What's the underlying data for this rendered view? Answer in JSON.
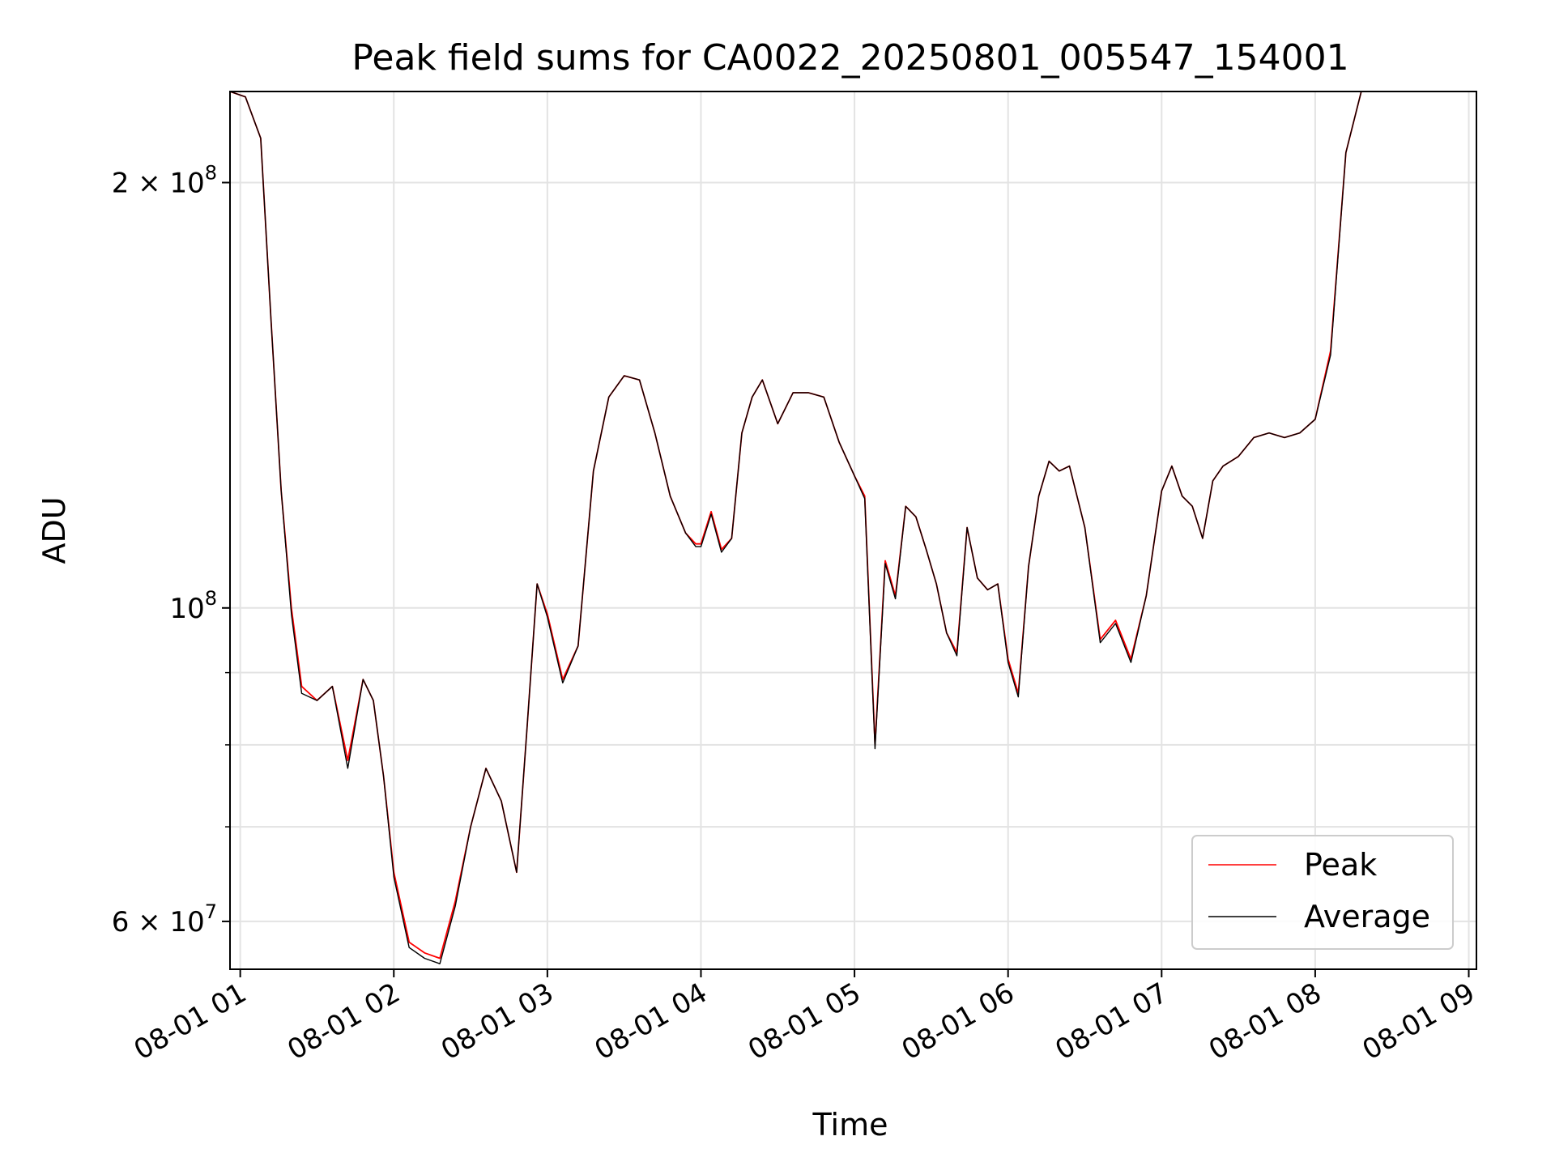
{
  "chart_data": {
    "type": "line",
    "title": "Peak field sums for CA0022_20250801_005547_154001",
    "xlabel": "Time",
    "ylabel": "ADU",
    "x_type": "time",
    "xlim": [
      "2025-08-01 00:56",
      "2025-08-01 09:03"
    ],
    "ylim": [
      55500000,
      232000000
    ],
    "y_scale": "log",
    "grid": true,
    "legend": "bottom-right",
    "x_ticks": [
      "08-01 01",
      "08-01 02",
      "08-01 03",
      "08-01 04",
      "08-01 05",
      "08-01 06",
      "08-01 07",
      "08-01 08",
      "08-01 09"
    ],
    "y_major_ticks": [
      {
        "value": 60000000,
        "label": "6 × 10",
        "exp": "7"
      },
      {
        "value": 100000000,
        "label": "10",
        "exp": "8"
      },
      {
        "value": 200000000,
        "label": "2 × 10",
        "exp": "8"
      }
    ],
    "y_minor_ticks": [
      70000000,
      80000000,
      90000000
    ],
    "x": [
      "00:56",
      "01:02",
      "01:08",
      "01:12",
      "01:16",
      "01:20",
      "01:24",
      "01:30",
      "01:36",
      "01:42",
      "01:48",
      "01:52",
      "01:56",
      "02:00",
      "02:06",
      "02:12",
      "02:18",
      "02:24",
      "02:30",
      "02:36",
      "02:42",
      "02:48",
      "02:52",
      "02:56",
      "03:00",
      "03:06",
      "03:12",
      "03:18",
      "03:24",
      "03:30",
      "03:36",
      "03:42",
      "03:48",
      "03:54",
      "03:58",
      "04:00",
      "04:04",
      "04:08",
      "04:12",
      "04:16",
      "04:20",
      "04:24",
      "04:30",
      "04:36",
      "04:42",
      "04:48",
      "04:54",
      "05:00",
      "05:04",
      "05:08",
      "05:12",
      "05:16",
      "05:20",
      "05:24",
      "05:28",
      "05:32",
      "05:36",
      "05:40",
      "05:44",
      "05:48",
      "05:52",
      "05:56",
      "06:00",
      "06:04",
      "06:08",
      "06:12",
      "06:16",
      "06:20",
      "06:24",
      "06:30",
      "06:36",
      "06:42",
      "06:48",
      "06:54",
      "07:00",
      "07:04",
      "07:08",
      "07:12",
      "07:16",
      "07:20",
      "07:24",
      "07:30",
      "07:36",
      "07:42",
      "07:48",
      "07:54",
      "08:00",
      "08:06",
      "08:12",
      "08:18",
      "08:24",
      "08:30",
      "08:36",
      "08:42",
      "08:48",
      "08:54",
      "09:00"
    ],
    "series": [
      {
        "name": "Peak",
        "color": "#ff0000",
        "values": [
          232000000,
          230000000,
          215000000,
          160000000,
          121000000,
          100000000,
          88000000,
          86000000,
          88000000,
          78000000,
          89000000,
          86000000,
          76000000,
          65000000,
          58000000,
          57000000,
          56500000,
          62000000,
          70000000,
          77000000,
          73000000,
          65000000,
          82000000,
          104000000,
          99000000,
          89000000,
          94000000,
          125000000,
          141000000,
          146000000,
          145000000,
          133000000,
          120000000,
          113000000,
          111000000,
          111000000,
          117000000,
          110000000,
          112000000,
          133000000,
          141000000,
          145000000,
          135000000,
          142000000,
          142000000,
          141000000,
          131000000,
          124000000,
          120000000,
          80000000,
          108000000,
          102000000,
          118000000,
          116000000,
          110000000,
          104000000,
          96000000,
          93000000,
          114000000,
          105000000,
          103000000,
          104000000,
          92000000,
          87000000,
          107000000,
          120000000,
          127000000,
          125000000,
          126000000,
          114000000,
          95000000,
          98000000,
          92000000,
          102000000,
          121000000,
          126000000,
          120000000,
          118000000,
          112000000,
          123000000,
          126000000,
          128000000,
          132000000,
          133000000,
          132000000,
          133000000,
          136000000,
          152000000,
          210000000,
          232000000,
          232000000,
          232000000,
          232000000,
          232000000,
          232000000,
          232000000,
          232000000
        ]
      },
      {
        "name": "Average",
        "color": "#000000",
        "values": [
          232000000,
          230000000,
          215000000,
          160000000,
          121000000,
          99000000,
          87000000,
          86000000,
          88000000,
          77000000,
          89000000,
          86000000,
          76000000,
          64500000,
          57500000,
          56500000,
          56000000,
          61500000,
          70000000,
          77000000,
          73000000,
          65000000,
          82000000,
          104000000,
          98500000,
          88500000,
          94000000,
          125000000,
          141000000,
          146000000,
          145000000,
          133000000,
          120000000,
          113000000,
          110500000,
          110500000,
          116500000,
          109500000,
          112000000,
          133000000,
          141000000,
          145000000,
          135000000,
          142000000,
          142000000,
          141000000,
          131000000,
          124000000,
          119500000,
          79500000,
          107500000,
          101500000,
          118000000,
          116000000,
          110000000,
          104000000,
          96000000,
          92500000,
          114000000,
          105000000,
          103000000,
          104000000,
          91500000,
          86500000,
          107000000,
          120000000,
          127000000,
          125000000,
          126000000,
          114000000,
          94500000,
          97500000,
          91500000,
          102000000,
          121000000,
          126000000,
          120000000,
          118000000,
          112000000,
          123000000,
          126000000,
          128000000,
          132000000,
          133000000,
          132000000,
          133000000,
          136000000,
          151000000,
          210000000,
          232000000,
          232000000,
          232000000,
          232000000,
          232000000,
          232000000,
          232000000,
          232000000
        ]
      }
    ]
  }
}
